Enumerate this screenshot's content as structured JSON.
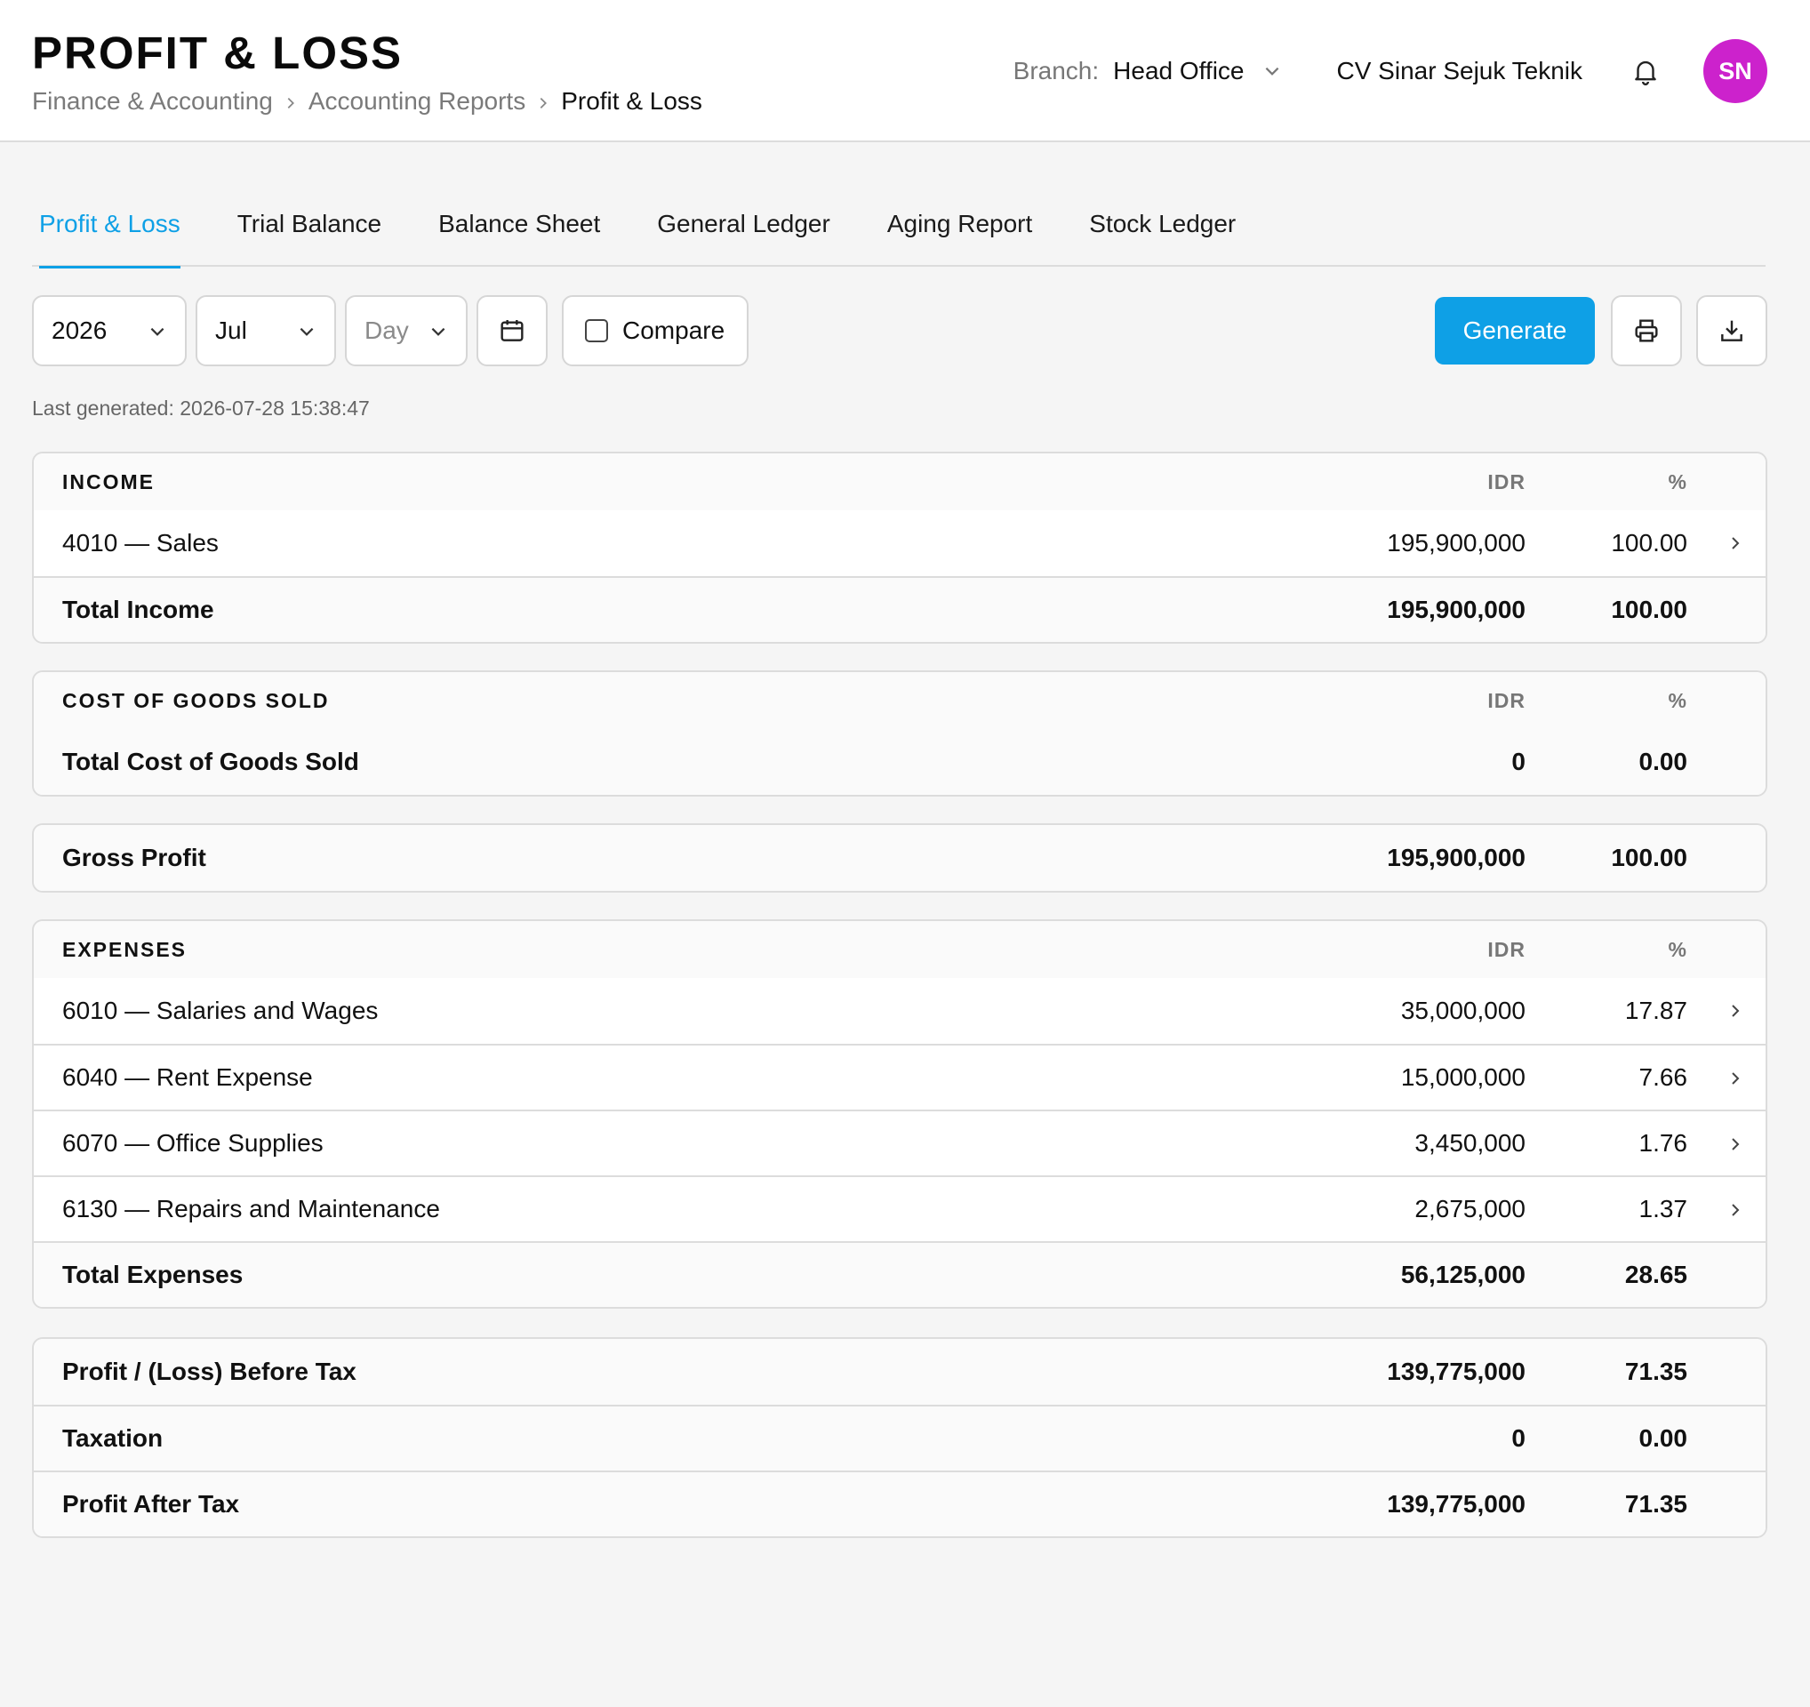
{
  "header": {
    "title": "PROFIT & LOSS",
    "breadcrumb": [
      "Finance & Accounting",
      "Accounting Reports",
      "Profit & Loss"
    ],
    "branch_label": "Branch:",
    "branch_value": "Head Office",
    "company": "CV Sinar Sejuk Teknik",
    "avatar_initials": "SN",
    "avatar_color": "#cc22cc"
  },
  "tabs": [
    {
      "label": "Profit & Loss",
      "active": true
    },
    {
      "label": "Trial Balance",
      "active": false
    },
    {
      "label": "Balance Sheet",
      "active": false
    },
    {
      "label": "General Ledger",
      "active": false
    },
    {
      "label": "Aging Report",
      "active": false
    },
    {
      "label": "Stock Ledger",
      "active": false
    }
  ],
  "toolbar": {
    "year": "2026",
    "month": "Jul",
    "day_placeholder": "Day",
    "compare_label": "Compare",
    "compare_checked": false,
    "generate_label": "Generate",
    "calendar_icon": "calendar-icon",
    "print_icon": "printer-icon",
    "download_icon": "download-icon"
  },
  "last_generated": "Last generated: 2026-07-28 15:38:47",
  "colors": {
    "accent": "#0ea0e6"
  },
  "sections": {
    "income": {
      "heading": "INCOME",
      "col_amount": "IDR",
      "col_pct": "%",
      "items": [
        {
          "label": "4010 — Sales",
          "amount": "195,900,000",
          "pct": "100.00"
        }
      ],
      "total": {
        "label": "Total Income",
        "amount": "195,900,000",
        "pct": "100.00"
      }
    },
    "cogs": {
      "heading": "COST OF GOODS SOLD",
      "col_amount": "IDR",
      "col_pct": "%",
      "total": {
        "label": "Total Cost of Goods Sold",
        "amount": "0",
        "pct": "0.00"
      }
    },
    "gross_profit": {
      "label": "Gross Profit",
      "amount": "195,900,000",
      "pct": "100.00"
    },
    "expenses": {
      "heading": "EXPENSES",
      "col_amount": "IDR",
      "col_pct": "%",
      "items": [
        {
          "label": "6010 — Salaries and Wages",
          "amount": "35,000,000",
          "pct": "17.87"
        },
        {
          "label": "6040 — Rent Expense",
          "amount": "15,000,000",
          "pct": "7.66"
        },
        {
          "label": "6070 — Office Supplies",
          "amount": "3,450,000",
          "pct": "1.76"
        },
        {
          "label": "6130 — Repairs and Maintenance",
          "amount": "2,675,000",
          "pct": "1.37"
        }
      ],
      "total": {
        "label": "Total Expenses",
        "amount": "56,125,000",
        "pct": "28.65"
      }
    },
    "summary": [
      {
        "label": "Profit / (Loss) Before Tax",
        "amount": "139,775,000",
        "pct": "71.35"
      },
      {
        "label": "Taxation",
        "amount": "0",
        "pct": "0.00"
      },
      {
        "label": "Profit After Tax",
        "amount": "139,775,000",
        "pct": "71.35"
      }
    ]
  }
}
